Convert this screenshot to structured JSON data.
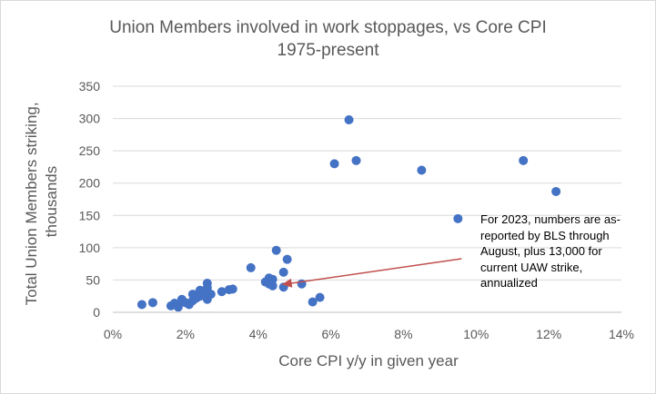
{
  "chart_data": {
    "type": "scatter",
    "title": "Union Members involved in work stoppages, vs Core CPI",
    "subtitle": "1975-present",
    "xlabel": "Core CPI y/y in given year",
    "ylabel": "Total Union Members striking, thousands",
    "xlim": [
      0,
      14
    ],
    "ylim": [
      0,
      350
    ],
    "x_ticks": [
      "0%",
      "2%",
      "4%",
      "6%",
      "8%",
      "10%",
      "12%",
      "14%"
    ],
    "y_ticks": [
      "0",
      "50",
      "100",
      "150",
      "200",
      "250",
      "300",
      "350"
    ],
    "grid": "horizontal",
    "points": [
      {
        "x": 0.8,
        "y": 12
      },
      {
        "x": 1.1,
        "y": 15
      },
      {
        "x": 1.6,
        "y": 10
      },
      {
        "x": 1.7,
        "y": 14
      },
      {
        "x": 1.8,
        "y": 8
      },
      {
        "x": 1.9,
        "y": 20
      },
      {
        "x": 2.0,
        "y": 15
      },
      {
        "x": 2.1,
        "y": 12
      },
      {
        "x": 2.2,
        "y": 18
      },
      {
        "x": 2.2,
        "y": 28
      },
      {
        "x": 2.3,
        "y": 22
      },
      {
        "x": 2.4,
        "y": 25
      },
      {
        "x": 2.4,
        "y": 34
      },
      {
        "x": 2.5,
        "y": 30
      },
      {
        "x": 2.6,
        "y": 20
      },
      {
        "x": 2.6,
        "y": 38
      },
      {
        "x": 2.6,
        "y": 45
      },
      {
        "x": 2.7,
        "y": 28
      },
      {
        "x": 3.0,
        "y": 32
      },
      {
        "x": 3.2,
        "y": 35
      },
      {
        "x": 3.3,
        "y": 36
      },
      {
        "x": 3.8,
        "y": 69
      },
      {
        "x": 4.2,
        "y": 47
      },
      {
        "x": 4.3,
        "y": 53
      },
      {
        "x": 4.3,
        "y": 44
      },
      {
        "x": 4.4,
        "y": 41
      },
      {
        "x": 4.4,
        "y": 51
      },
      {
        "x": 4.5,
        "y": 96
      },
      {
        "x": 4.7,
        "y": 39
      },
      {
        "x": 4.7,
        "y": 62
      },
      {
        "x": 4.8,
        "y": 82
      },
      {
        "x": 5.2,
        "y": 44
      },
      {
        "x": 5.5,
        "y": 16
      },
      {
        "x": 5.7,
        "y": 23
      },
      {
        "x": 6.1,
        "y": 230
      },
      {
        "x": 6.5,
        "y": 298
      },
      {
        "x": 6.7,
        "y": 235
      },
      {
        "x": 8.5,
        "y": 220
      },
      {
        "x": 9.5,
        "y": 145
      },
      {
        "x": 11.3,
        "y": 235
      },
      {
        "x": 12.2,
        "y": 187
      }
    ],
    "annotation": {
      "text": "For 2023, numbers are as-reported by BLS through August, plus 13,000 for current UAW strike, annualized",
      "arrow_target": {
        "x": 4.65,
        "y": 43
      },
      "arrow_source": {
        "x": 9.6,
        "y": 83
      }
    },
    "colors": {
      "points": "#4472c4",
      "arrow": "#c0504d",
      "grid": "#d9d9d9",
      "text": "#595959"
    }
  }
}
